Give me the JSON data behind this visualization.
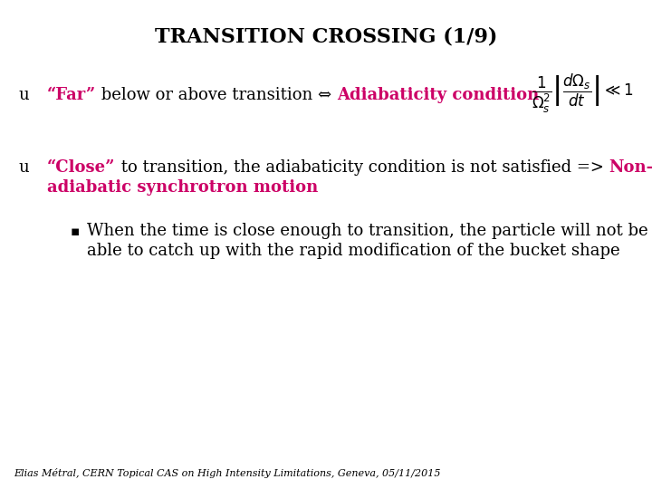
{
  "title": "TRANSITION CROSSING (1/9)",
  "background_color": "#ffffff",
  "title_fontsize": 16,
  "title_color": "#000000",
  "highlight_color": "#cc0066",
  "body_color": "#000000",
  "footer_text": "Elias Métral, CERN Topical CAS on High Intensity Limitations, Geneva, 05/11/2015",
  "footer_fontsize": 8,
  "text_fontsize": 13,
  "formula_str": "$\\dfrac{1}{\\Omega_s^2}\\left|\\dfrac{d\\Omega_s}{dt}\\right| \\ll 1$"
}
